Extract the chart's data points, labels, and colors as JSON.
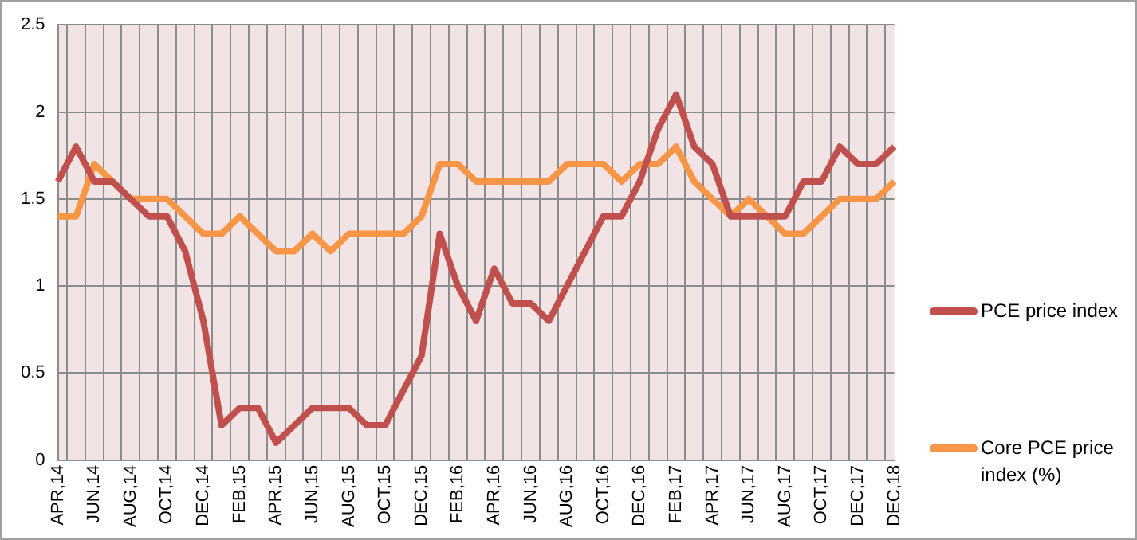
{
  "chart_data": {
    "type": "line",
    "categories": [
      "APR,14",
      null,
      "JUN,14",
      null,
      "AUG,14",
      null,
      "OCT,14",
      null,
      "DEC,14",
      null,
      "FEB,15",
      null,
      "APR,15",
      null,
      "JUN,15",
      null,
      "AUG,15",
      null,
      "OCT,15",
      null,
      "DEC,15",
      null,
      "FEB,16",
      null,
      "APR,16",
      null,
      "JUN,16",
      null,
      "AUG,16",
      null,
      "OCT,16",
      null,
      "DEC,16",
      null,
      "FEB,17",
      null,
      "APR,17",
      null,
      "JUN,17",
      null,
      "AUG,17",
      null,
      "OCT,17",
      null,
      "DEC,17",
      null,
      "DEC,18"
    ],
    "series": [
      {
        "name": "PCE price index",
        "color": "#c0504d",
        "values": [
          1.6,
          1.8,
          1.6,
          1.6,
          1.5,
          1.4,
          1.4,
          1.2,
          0.8,
          0.2,
          0.3,
          0.3,
          0.1,
          0.2,
          0.3,
          0.3,
          0.3,
          0.2,
          0.2,
          0.4,
          0.6,
          1.3,
          1.0,
          0.8,
          1.1,
          0.9,
          0.9,
          0.8,
          1.0,
          1.2,
          1.4,
          1.4,
          1.6,
          1.9,
          2.1,
          1.8,
          1.7,
          1.4,
          1.4,
          1.4,
          1.4,
          1.6,
          1.6,
          1.8,
          1.7,
          1.7,
          1.8
        ]
      },
      {
        "name": "Core PCE price index (%)",
        "color": "#f79646",
        "values": [
          1.4,
          1.4,
          1.7,
          1.6,
          1.5,
          1.5,
          1.5,
          1.4,
          1.3,
          1.3,
          1.4,
          1.3,
          1.2,
          1.2,
          1.3,
          1.2,
          1.3,
          1.3,
          1.3,
          1.3,
          1.4,
          1.7,
          1.7,
          1.6,
          1.6,
          1.6,
          1.6,
          1.6,
          1.7,
          1.7,
          1.7,
          1.6,
          1.7,
          1.7,
          1.8,
          1.6,
          1.5,
          1.4,
          1.5,
          1.4,
          1.3,
          1.3,
          1.4,
          1.5,
          1.5,
          1.5,
          1.6
        ]
      }
    ],
    "ylim": [
      0,
      2.5
    ],
    "yticks": [
      0,
      0.5,
      1,
      1.5,
      2,
      2.5
    ],
    "grid": true,
    "legend": "right",
    "marker": "none",
    "line_style": "solid"
  }
}
